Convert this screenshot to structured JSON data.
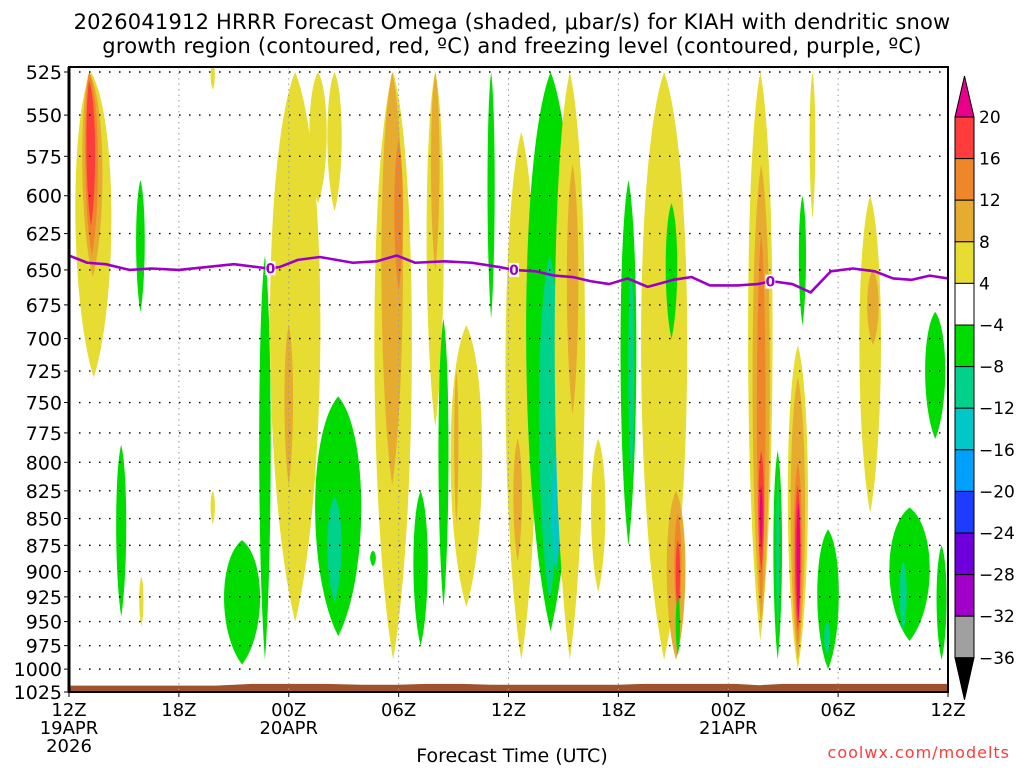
{
  "title": {
    "line1": "2026041912 HRRR Forecast Omega (shaded, μbar/s) for KIAH with dendritic snow",
    "line2": "growth region (contoured, red, ºC) and freezing level (contoured, purple, ºC)"
  },
  "credit": "coolwx.com/modelts",
  "chart_data": {
    "type": "heatmap",
    "title": "2026041912 HRRR Forecast Omega (shaded, μbar/s) for KIAH with dendritic snow growth region (contoured, red, ºC) and freezing level (contoured, purple, ºC)",
    "xlabel": "Forecast Time (UTC)",
    "ylabel": "",
    "x_hours_range": [
      0,
      48
    ],
    "x_ticks": [
      {
        "hour": 0,
        "label": "12Z",
        "sub": [
          "19APR",
          "2026"
        ]
      },
      {
        "hour": 6,
        "label": "18Z",
        "sub": []
      },
      {
        "hour": 12,
        "label": "00Z",
        "sub": [
          "20APR"
        ]
      },
      {
        "hour": 18,
        "label": "06Z",
        "sub": []
      },
      {
        "hour": 24,
        "label": "12Z",
        "sub": []
      },
      {
        "hour": 30,
        "label": "18Z",
        "sub": []
      },
      {
        "hour": 36,
        "label": "00Z",
        "sub": [
          "21APR"
        ]
      },
      {
        "hour": 42,
        "label": "06Z",
        "sub": []
      },
      {
        "hour": 48,
        "label": "12Z",
        "sub": []
      }
    ],
    "y_levels_hpa": [
      525,
      550,
      575,
      600,
      625,
      650,
      675,
      700,
      725,
      750,
      775,
      800,
      825,
      850,
      875,
      900,
      925,
      950,
      975,
      1000,
      1025
    ],
    "ylim": [
      525,
      1025
    ],
    "grid": true,
    "colorbar": {
      "position": "right",
      "levels": [
        20,
        16,
        12,
        8,
        4,
        -4,
        -8,
        -12,
        -16,
        -20,
        -24,
        -28,
        -32,
        -36
      ],
      "colors": [
        "#e8008a",
        "#ff3c3c",
        "#f0862a",
        "#e6ac30",
        "#e6dc32",
        "#ffffff",
        "#00dc00",
        "#00d28c",
        "#00c8c8",
        "#00a0ff",
        "#1e3cff",
        "#6e00dc",
        "#a000c8",
        "#a0a0a0",
        "#000000"
      ],
      "color_bins": [
        ">20",
        "16 to 20",
        "12 to 16",
        "8 to 12",
        "4 to 8",
        "-4 to 4",
        "-8 to -4",
        "-12 to -8",
        "-16 to -12",
        "-20 to -16",
        "-24 to -20",
        "-28 to -24",
        "-32 to -28",
        "-36 to -32",
        "<-36"
      ]
    },
    "freezing_level": {
      "label": "0",
      "color": "#9b00c8",
      "points": [
        [
          0,
          640
        ],
        [
          1,
          645
        ],
        [
          2,
          646
        ],
        [
          3.3,
          650
        ],
        [
          4.5,
          649
        ],
        [
          6,
          650
        ],
        [
          7.5,
          648
        ],
        [
          9,
          646
        ],
        [
          10.9,
          649
        ],
        [
          11.5,
          648
        ],
        [
          12.5,
          643
        ],
        [
          13.7,
          641
        ],
        [
          15.5,
          645
        ],
        [
          16.8,
          644
        ],
        [
          17.9,
          640
        ],
        [
          18.9,
          645
        ],
        [
          20.5,
          644
        ],
        [
          22,
          645
        ],
        [
          23.5,
          648
        ],
        [
          24.3,
          650
        ],
        [
          25.5,
          651
        ],
        [
          26.5,
          654
        ],
        [
          27.5,
          655
        ],
        [
          28.5,
          658
        ],
        [
          29.5,
          660
        ],
        [
          30.5,
          656
        ],
        [
          31.6,
          662
        ],
        [
          33,
          657
        ],
        [
          34,
          655
        ],
        [
          35,
          661
        ],
        [
          36.5,
          661
        ],
        [
          37.6,
          660
        ],
        [
          38.4,
          658
        ],
        [
          39.5,
          660
        ],
        [
          40.5,
          666
        ],
        [
          41.6,
          651
        ],
        [
          42.8,
          649
        ],
        [
          44,
          651
        ],
        [
          45,
          656
        ],
        [
          46,
          657
        ],
        [
          47,
          654
        ],
        [
          48,
          656
        ]
      ],
      "label_hours": [
        11,
        24.3,
        38.3
      ]
    },
    "omega_regions": [
      {
        "bin": "4 to 8",
        "hours": [
          0.1,
          2.6
        ],
        "p": [
          525,
          730
        ],
        "peak_h": 1.2
      },
      {
        "bin": "8 to 12",
        "hours": [
          0.6,
          2.0
        ],
        "p": [
          525,
          655
        ],
        "peak_h": 1.1
      },
      {
        "bin": "12 to 16",
        "hours": [
          0.8,
          1.7
        ],
        "p": [
          525,
          640
        ],
        "peak_h": 1.1
      },
      {
        "bin": "16 to 20",
        "hours": [
          0.9,
          1.5
        ],
        "p": [
          530,
          620
        ],
        "peak_h": 1.1
      },
      {
        "bin": "-8 to -4",
        "hours": [
          3.6,
          4.2
        ],
        "p": [
          590,
          680
        ]
      },
      {
        "bin": "-8 to -4",
        "hours": [
          2.5,
          3.2
        ],
        "p": [
          785,
          945
        ]
      },
      {
        "bin": "4 to 8",
        "hours": [
          3.8,
          4.1
        ],
        "p": [
          905,
          955
        ]
      },
      {
        "bin": "4 to 8",
        "hours": [
          7.7,
          8.0
        ],
        "p": [
          520,
          535
        ]
      },
      {
        "bin": "4 to 8",
        "hours": [
          7.7,
          8.0
        ],
        "p": [
          825,
          855
        ]
      },
      {
        "bin": "-8 to -4",
        "hours": [
          8.2,
          10.7
        ],
        "p": [
          870,
          995
        ]
      },
      {
        "bin": "-8 to -4",
        "hours": [
          10.3,
          11.1
        ],
        "p": [
          640,
          990
        ]
      },
      {
        "bin": "4 to 8",
        "hours": [
          10.6,
          14.1
        ],
        "p": [
          525,
          950
        ]
      },
      {
        "bin": "8 to 12",
        "hours": [
          11.7,
          12.3
        ],
        "p": [
          690,
          820
        ]
      },
      {
        "bin": "4 to 8",
        "hours": [
          13.0,
          14.2
        ],
        "p": [
          525,
          605
        ]
      },
      {
        "bin": "4 to 8",
        "hours": [
          14.0,
          15.0
        ],
        "p": [
          525,
          610
        ]
      },
      {
        "bin": "-8 to -4",
        "hours": [
          13.1,
          16.3
        ],
        "p": [
          745,
          965
        ]
      },
      {
        "bin": "-12 to -8",
        "hours": [
          14.0,
          15.0
        ],
        "p": [
          830,
          930
        ]
      },
      {
        "bin": "-8 to -4",
        "hours": [
          16.4,
          16.8
        ],
        "p": [
          880,
          895
        ]
      },
      {
        "bin": "4 to 8",
        "hours": [
          16.4,
          19.0
        ],
        "p": [
          525,
          990
        ]
      },
      {
        "bin": "8 to 12",
        "hours": [
          16.9,
          18.4
        ],
        "p": [
          525,
          820
        ]
      },
      {
        "bin": "12 to 16",
        "hours": [
          17.7,
          18.3
        ],
        "p": [
          565,
          665
        ]
      },
      {
        "bin": "4 to 8",
        "hours": [
          19.4,
          20.6
        ],
        "p": [
          525,
          770
        ]
      },
      {
        "bin": "8 to 12",
        "hours": [
          19.7,
          20.3
        ],
        "p": [
          525,
          650
        ]
      },
      {
        "bin": "-8 to -4",
        "hours": [
          18.7,
          19.7
        ],
        "p": [
          825,
          975
        ]
      },
      {
        "bin": "-8 to -4",
        "hours": [
          20.1,
          20.8
        ],
        "p": [
          685,
          935
        ]
      },
      {
        "bin": "4 to 8",
        "hours": [
          20.6,
          22.8
        ],
        "p": [
          690,
          935
        ]
      },
      {
        "bin": "8 to 12",
        "hours": [
          21.0,
          21.3
        ],
        "p": [
          725,
          855
        ]
      },
      {
        "bin": "-8 to -4",
        "hours": [
          22.8,
          23.3
        ],
        "p": [
          525,
          685
        ]
      },
      {
        "bin": "4 to 8",
        "hours": [
          23.6,
          25.8
        ],
        "p": [
          560,
          990
        ]
      },
      {
        "bin": "8 to 12",
        "hours": [
          24.2,
          24.8
        ],
        "p": [
          780,
          890
        ]
      },
      {
        "bin": "-8 to -4",
        "hours": [
          24.6,
          28.0
        ],
        "p": [
          525,
          960
        ]
      },
      {
        "bin": "-12 to -8",
        "hours": [
          25.5,
          27.0
        ],
        "p": [
          640,
          930
        ]
      },
      {
        "bin": "-16 to -12",
        "hours": [
          26.3,
          26.9
        ],
        "p": [
          790,
          900
        ]
      },
      {
        "bin": "4 to 8",
        "hours": [
          26.3,
          28.4
        ],
        "p": [
          525,
          990
        ]
      },
      {
        "bin": "8 to 12",
        "hours": [
          27.1,
          27.9
        ],
        "p": [
          580,
          760
        ]
      },
      {
        "bin": "4 to 8",
        "hours": [
          28.4,
          29.4
        ],
        "p": [
          780,
          920
        ]
      },
      {
        "bin": "-8 to -4",
        "hours": [
          30.0,
          31.1
        ],
        "p": [
          590,
          875
        ]
      },
      {
        "bin": "-12 to -8",
        "hours": [
          30.5,
          30.9
        ],
        "p": [
          650,
          815
        ]
      },
      {
        "bin": "4 to 8",
        "hours": [
          30.9,
          34.1
        ],
        "p": [
          525,
          990
        ]
      },
      {
        "bin": "8 to 12",
        "hours": [
          32.5,
          33.8
        ],
        "p": [
          825,
          990
        ]
      },
      {
        "bin": "12 to 16",
        "hours": [
          33.0,
          33.5
        ],
        "p": [
          845,
          950
        ]
      },
      {
        "bin": "16 to 20",
        "hours": [
          33.1,
          33.4
        ],
        "p": [
          870,
          940
        ]
      },
      {
        "bin": "-8 to -4",
        "hours": [
          32.5,
          33.3
        ],
        "p": [
          605,
          700
        ]
      },
      {
        "bin": "-8 to -4",
        "hours": [
          33.1,
          33.4
        ],
        "p": [
          925,
          985
        ]
      },
      {
        "bin": "4 to 8",
        "hours": [
          36.9,
          38.6
        ],
        "p": [
          525,
          970
        ]
      },
      {
        "bin": "8 to 12",
        "hours": [
          37.2,
          38.4
        ],
        "p": [
          580,
          955
        ]
      },
      {
        "bin": "12 to 16",
        "hours": [
          37.5,
          38.1
        ],
        "p": [
          625,
          940
        ]
      },
      {
        "bin": "16 to 20",
        "hours": [
          37.6,
          38.0
        ],
        "p": [
          790,
          900
        ]
      },
      {
        "bin": ">20",
        "hours": [
          37.7,
          37.9
        ],
        "p": [
          820,
          880
        ]
      },
      {
        "bin": "-8 to -4",
        "hours": [
          38.4,
          39.0
        ],
        "p": [
          790,
          990
        ]
      },
      {
        "bin": "-12 to -8",
        "hours": [
          38.6,
          38.8
        ],
        "p": [
          810,
          965
        ]
      },
      {
        "bin": "4 to 8",
        "hours": [
          39.1,
          40.5
        ],
        "p": [
          705,
          1000
        ]
      },
      {
        "bin": "8 to 12",
        "hours": [
          39.3,
          40.3
        ],
        "p": [
          730,
          990
        ]
      },
      {
        "bin": "12 to 16",
        "hours": [
          39.5,
          40.1
        ],
        "p": [
          800,
          975
        ]
      },
      {
        "bin": "16 to 20",
        "hours": [
          39.6,
          40.0
        ],
        "p": [
          820,
          960
        ]
      },
      {
        "bin": ">20",
        "hours": [
          39.7,
          39.95
        ],
        "p": [
          835,
          950
        ]
      },
      {
        "bin": "-8 to -4",
        "hours": [
          40.7,
          42.2
        ],
        "p": [
          860,
          1000
        ]
      },
      {
        "bin": "-12 to -8",
        "hours": [
          41.2,
          41.6
        ],
        "p": [
          950,
          985
        ]
      },
      {
        "bin": "4 to 8",
        "hours": [
          40.4,
          40.8
        ],
        "p": [
          525,
          615
        ]
      },
      {
        "bin": "-8 to -4",
        "hours": [
          39.8,
          40.3
        ],
        "p": [
          600,
          690
        ]
      },
      {
        "bin": "4 to 8",
        "hours": [
          43.0,
          44.5
        ],
        "p": [
          600,
          845
        ]
      },
      {
        "bin": "8 to 12",
        "hours": [
          43.5,
          44.3
        ],
        "p": [
          650,
          705
        ]
      },
      {
        "bin": "-8 to -4",
        "hours": [
          44.5,
          47.3
        ],
        "p": [
          840,
          970
        ]
      },
      {
        "bin": "-12 to -8",
        "hours": [
          45.3,
          45.8
        ],
        "p": [
          890,
          960
        ]
      },
      {
        "bin": "-8 to -4",
        "hours": [
          46.6,
          48.0
        ],
        "p": [
          680,
          780
        ]
      },
      {
        "bin": "-8 to -4",
        "hours": [
          47.3,
          48.0
        ],
        "p": [
          875,
          990
        ]
      }
    ],
    "terrain": {
      "color": "#a0522d",
      "surface_hpa": [
        [
          0,
          1018
        ],
        [
          8,
          1018
        ],
        [
          10,
          1016
        ],
        [
          14,
          1016
        ],
        [
          16,
          1017
        ],
        [
          18,
          1017
        ],
        [
          19.5,
          1016
        ],
        [
          21.5,
          1016
        ],
        [
          23,
          1017
        ],
        [
          30,
          1017
        ],
        [
          31.5,
          1016
        ],
        [
          34,
          1016
        ],
        [
          36.4,
          1016
        ],
        [
          37.7,
          1017.5
        ],
        [
          39,
          1016
        ],
        [
          44,
          1016
        ],
        [
          48,
          1016
        ]
      ]
    }
  }
}
